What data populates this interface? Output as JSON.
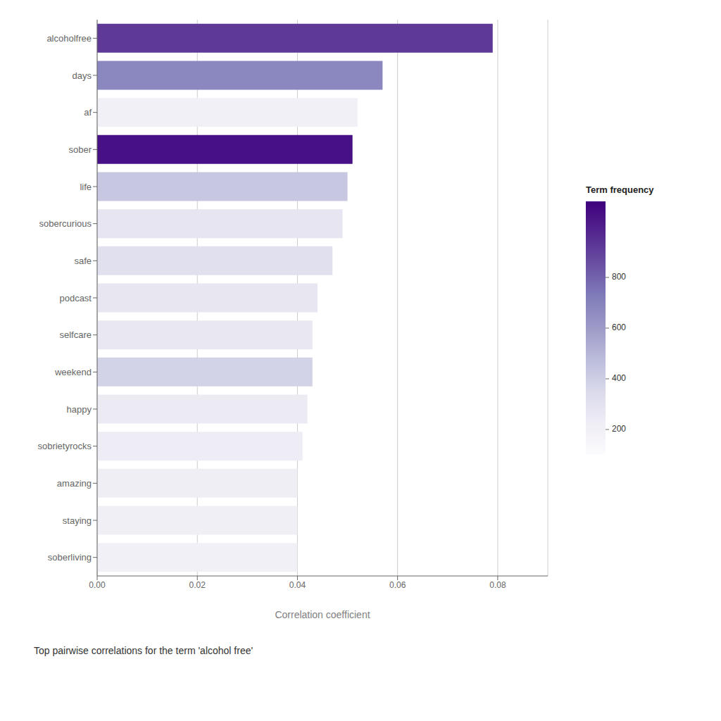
{
  "chart_data": {
    "type": "bar",
    "orientation": "horizontal",
    "categories": [
      "soberliving",
      "staying",
      "amazing",
      "sobrietyrocks",
      "happy",
      "weekend",
      "selfcare",
      "podcast",
      "safe",
      "sobercurious",
      "life",
      "sober",
      "af",
      "days",
      "alcoholfree"
    ],
    "values": [
      0.04,
      0.04,
      0.04,
      0.041,
      0.042,
      0.043,
      0.043,
      0.044,
      0.047,
      0.049,
      0.05,
      0.051,
      0.052,
      0.057,
      0.079
    ],
    "term_frequencies": [
      200,
      210,
      220,
      230,
      240,
      380,
      260,
      270,
      310,
      280,
      430,
      1050,
      200,
      680,
      920
    ],
    "color_range": [
      100,
      1100
    ],
    "color_ticks": [
      200,
      400,
      600,
      800
    ],
    "color_title": "Term frequency",
    "xlabel": "Correlation coefficient",
    "subtitle": "Top pairwise correlations for the term 'alcohol free'",
    "xlim": [
      0.0,
      0.09
    ],
    "xticks": [
      {
        "value": 0,
        "label": "0.00"
      },
      0.02,
      0.04,
      0.06,
      0.08
    ],
    "grid": true
  }
}
